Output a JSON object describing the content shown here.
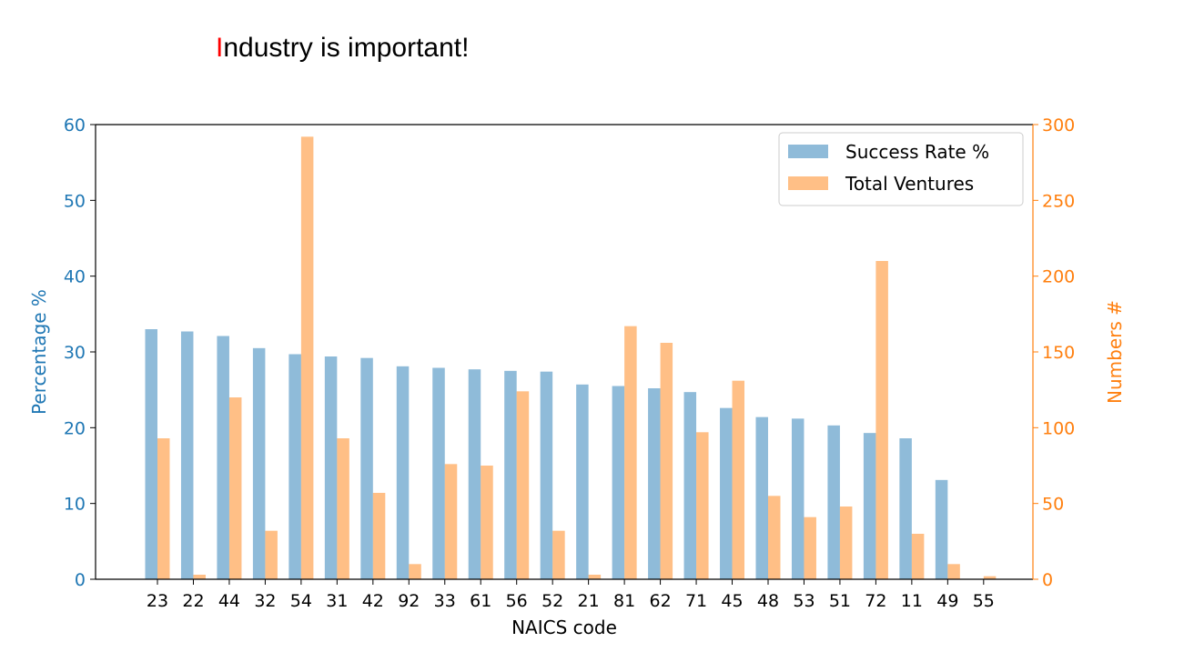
{
  "title": {
    "first_letter": "I",
    "rest": "ndustry is important!"
  },
  "chart_data": {
    "type": "bar",
    "categories": [
      "23",
      "22",
      "44",
      "32",
      "54",
      "31",
      "42",
      "92",
      "33",
      "61",
      "56",
      "52",
      "21",
      "81",
      "62",
      "71",
      "45",
      "48",
      "53",
      "51",
      "72",
      "11",
      "49",
      "55"
    ],
    "series": [
      {
        "name": "Success Rate %",
        "axis": "left",
        "color": "#1f77b4",
        "opacity": 0.5,
        "values": [
          33.0,
          32.7,
          32.1,
          30.5,
          29.7,
          29.4,
          29.2,
          28.1,
          27.9,
          27.7,
          27.5,
          27.4,
          25.7,
          25.5,
          25.2,
          24.7,
          22.6,
          21.4,
          21.2,
          20.3,
          19.3,
          18.6,
          13.1,
          0
        ]
      },
      {
        "name": "Total Ventures",
        "axis": "right",
        "color": "#ff7f0e",
        "opacity": 0.5,
        "values": [
          93,
          3,
          120,
          32,
          292,
          93,
          57,
          10,
          76,
          75,
          124,
          32,
          3,
          167,
          156,
          97,
          131,
          55,
          41,
          48,
          210,
          30,
          10,
          2
        ]
      }
    ],
    "xlabel": "NAICS code",
    "ylabel_left": "Percentage %",
    "ylabel_right": "Numbers #",
    "ylim_left": [
      0,
      60
    ],
    "ylim_right": [
      0,
      300
    ],
    "yticks_left": [
      0,
      10,
      20,
      30,
      40,
      50,
      60
    ],
    "yticks_right": [
      0,
      50,
      100,
      150,
      200,
      250,
      300
    ],
    "legend_position": "upper right",
    "grid": false
  }
}
